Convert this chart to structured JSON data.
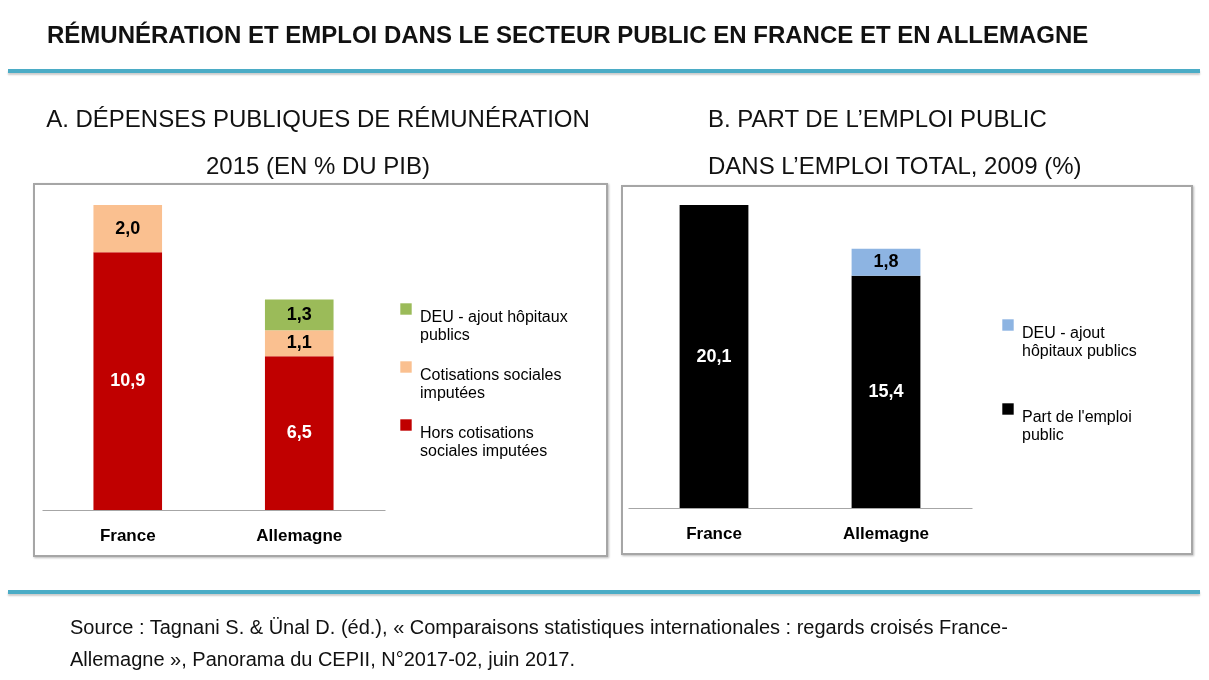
{
  "chart_data": [
    {
      "type": "other",
      "title": "RÉMUNÉRATION ET EMPLOI DANS LE SECTEUR PUBLIC EN FRANCE ET EN ALLEMAGNE"
    },
    {
      "type": "bar",
      "title": "A. DÉPENSES PUBLIQUES DE RÉMUNÉRATION 2015 (EN % DU PIB)",
      "categories": [
        "France",
        "Allemagne"
      ],
      "stacked": true,
      "legend": "right",
      "series": [
        {
          "name": "Hors cotisations sociales imputées",
          "color": "#c00000",
          "values": [
            10.9,
            6.5
          ],
          "value_labels": [
            "10,9",
            "6,5"
          ]
        },
        {
          "name": "Cotisations sociales imputées",
          "color": "#fac090",
          "values": [
            2.0,
            1.1
          ],
          "value_labels": [
            "2,0",
            "1,1"
          ]
        },
        {
          "name": "DEU - ajout hôpitaux publics",
          "color": "#9bbb59",
          "values": [
            null,
            1.3
          ],
          "value_labels": [
            null,
            "1,3"
          ]
        }
      ]
    },
    {
      "type": "bar",
      "title": "B. PART DE L’EMPLOI PUBLIC DANS L’EMPLOI TOTAL, 2009 (%)",
      "categories": [
        "France",
        "Allemagne"
      ],
      "stacked": true,
      "legend": "right",
      "series": [
        {
          "name": "Part de l'emploi public",
          "color": "#000000",
          "values": [
            20.1,
            15.4
          ],
          "value_labels": [
            "20,1",
            "15,4"
          ]
        },
        {
          "name": "DEU - ajout hôpitaux publics",
          "color": "#8db4e2",
          "values": [
            null,
            1.8
          ],
          "value_labels": [
            null,
            "1,8"
          ]
        }
      ]
    },
    {
      "type": "other",
      "annotations": [
        "Source : Tagnani S. & Ünal D. (éd.), « Comparaisons statistiques internationales : regards croisés France-Allemagne », Panorama du CEPII, N°2017-02, juin 2017."
      ]
    }
  ]
}
